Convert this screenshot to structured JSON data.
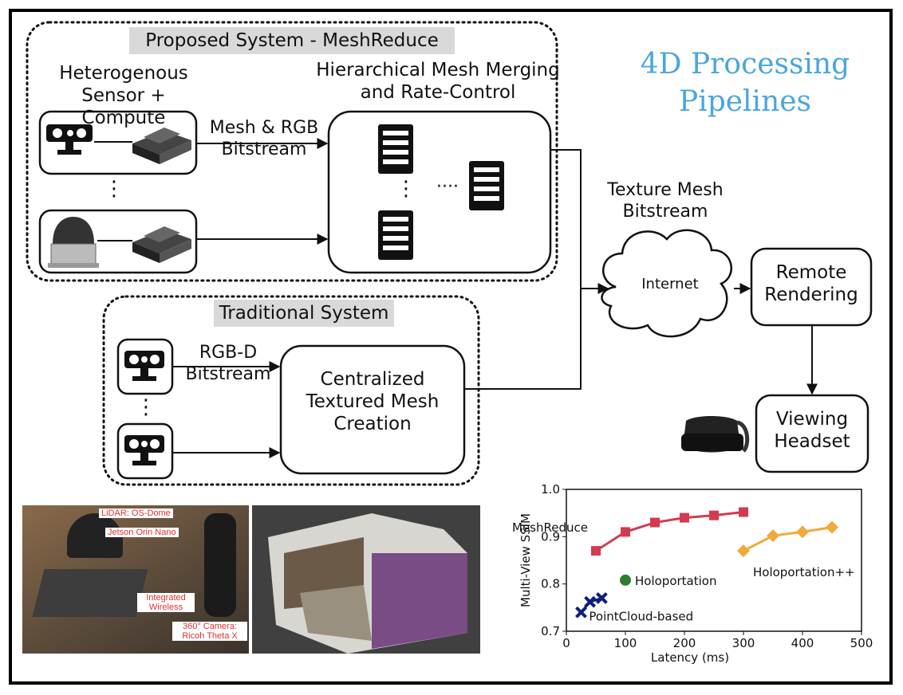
{
  "title": "4D Processing Pipelines",
  "proposed": {
    "header": "Proposed System - MeshReduce",
    "sensor_label": "Heterogenous Sensor + Compute",
    "merge_label": "Hierarchical Mesh Merging and Rate-Control",
    "stream_label": "Mesh & RGB Bitstream",
    "vdots": "⋮",
    "hdots": "····"
  },
  "traditional": {
    "header": "Traditional System",
    "stream_label": "RGB-D Bitstream",
    "central_label": "Centralized Textured Mesh Creation",
    "vdots": "⋮"
  },
  "network": {
    "texture_label": "Texture Mesh Bitstream",
    "internet_label": "Internet",
    "remote_label": "Remote Rendering",
    "headset_label": "Viewing Headset"
  },
  "photo_labels": {
    "lidar": "LiDAR: OS-Dome",
    "jetson": "Jetson Orin Nano",
    "wireless": "Integrated Wireless",
    "camera": "360° Camera: Ricoh Theta X"
  },
  "chart_data": {
    "type": "line",
    "xlabel": "Latency (ms)",
    "ylabel": "Multi-View SSIM",
    "xlim": [
      0,
      500
    ],
    "ylim": [
      0.7,
      1.0
    ],
    "xticks": [
      0,
      100,
      200,
      300,
      400,
      500
    ],
    "yticks": [
      0.7,
      0.8,
      0.9,
      1.0
    ],
    "xtick_labels": [
      "0",
      "100",
      "200",
      "300",
      "400",
      "500"
    ],
    "ytick_labels": [
      "0.7",
      "0.8",
      "0.9",
      "1.0"
    ],
    "grid": false,
    "series": [
      {
        "name": "MeshReduce",
        "marker": "square",
        "color": "#d23b50",
        "x": [
          50,
          100,
          150,
          200,
          250,
          300
        ],
        "y": [
          0.87,
          0.91,
          0.93,
          0.94,
          0.945,
          0.952
        ]
      },
      {
        "name": "Holoportation++",
        "marker": "diamond",
        "color": "#f2a93b",
        "x": [
          300,
          350,
          400,
          450
        ],
        "y": [
          0.87,
          0.902,
          0.91,
          0.92
        ]
      },
      {
        "name": "Holoportation",
        "marker": "circle",
        "color": "#2e7d32",
        "x": [
          100
        ],
        "y": [
          0.808
        ]
      },
      {
        "name": "PointCloud-based",
        "marker": "x",
        "color": "#0d1f7a",
        "x": [
          25,
          40,
          60
        ],
        "y": [
          0.74,
          0.762,
          0.77
        ]
      }
    ]
  }
}
